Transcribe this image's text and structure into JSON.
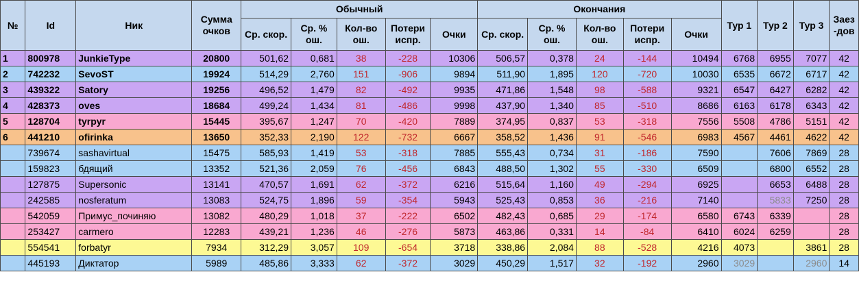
{
  "header": {
    "num": "№",
    "id": "Id",
    "nick": "Ник",
    "sum": "Сумма очков",
    "group_normal": "Обычный",
    "group_endings": "Окончания",
    "speed": "Ср. скор.",
    "err_pct": "Ср. % ош.",
    "err_count": "Кол-во ош.",
    "fix_loss": "Потери испр.",
    "points": "Очки",
    "tour1": "Тур 1",
    "tour2": "Тур 2",
    "tour3": "Тур 3",
    "races": "Заез-дов"
  },
  "colors": {
    "header_bg": "#c5d8ee",
    "purple": "#c9a6f3",
    "blue": "#a9d2f5",
    "pink": "#f9a8d0",
    "orange": "#f8c28c",
    "yellow": "#fdf994",
    "red_text": "#c0272d",
    "grey_text": "#8c8c8c"
  },
  "rows": [
    {
      "num": "1",
      "id": "800978",
      "nick": "JunkieType",
      "sum": "20800",
      "n_speed": "501,62",
      "n_errpct": "0,681",
      "n_errcnt": "38",
      "n_loss": "-228",
      "n_pts": "10306",
      "e_speed": "506,57",
      "e_errpct": "0,378",
      "e_errcnt": "24",
      "e_loss": "-144",
      "e_pts": "10494",
      "t1": "6768",
      "t2": "6955",
      "t3": "7077",
      "races": "42",
      "color": "purple",
      "bold": true
    },
    {
      "num": "2",
      "id": "742232",
      "nick": "SevoST",
      "sum": "19924",
      "n_speed": "514,29",
      "n_errpct": "2,760",
      "n_errcnt": "151",
      "n_loss": "-906",
      "n_pts": "9894",
      "e_speed": "511,90",
      "e_errpct": "1,895",
      "e_errcnt": "120",
      "e_loss": "-720",
      "e_pts": "10030",
      "t1": "6535",
      "t2": "6672",
      "t3": "6717",
      "races": "42",
      "color": "blue",
      "bold": true
    },
    {
      "num": "3",
      "id": "439322",
      "nick": "Satory",
      "sum": "19256",
      "n_speed": "496,52",
      "n_errpct": "1,479",
      "n_errcnt": "82",
      "n_loss": "-492",
      "n_pts": "9935",
      "e_speed": "471,86",
      "e_errpct": "1,548",
      "e_errcnt": "98",
      "e_loss": "-588",
      "e_pts": "9321",
      "t1": "6547",
      "t2": "6427",
      "t3": "6282",
      "races": "42",
      "color": "purple",
      "bold": true
    },
    {
      "num": "4",
      "id": "428373",
      "nick": "oves",
      "sum": "18684",
      "n_speed": "499,24",
      "n_errpct": "1,434",
      "n_errcnt": "81",
      "n_loss": "-486",
      "n_pts": "9998",
      "e_speed": "437,90",
      "e_errpct": "1,340",
      "e_errcnt": "85",
      "e_loss": "-510",
      "e_pts": "8686",
      "t1": "6163",
      "t2": "6178",
      "t3": "6343",
      "races": "42",
      "color": "purple",
      "bold": true
    },
    {
      "num": "5",
      "id": "128704",
      "nick": "tyrpyr",
      "sum": "15445",
      "n_speed": "395,67",
      "n_errpct": "1,247",
      "n_errcnt": "70",
      "n_loss": "-420",
      "n_pts": "7889",
      "e_speed": "374,95",
      "e_errpct": "0,837",
      "e_errcnt": "53",
      "e_loss": "-318",
      "e_pts": "7556",
      "t1": "5508",
      "t2": "4786",
      "t3": "5151",
      "races": "42",
      "color": "pink",
      "bold": true
    },
    {
      "num": "6",
      "id": "441210",
      "nick": "ofirinka",
      "sum": "13650",
      "n_speed": "352,33",
      "n_errpct": "2,190",
      "n_errcnt": "122",
      "n_loss": "-732",
      "n_pts": "6667",
      "e_speed": "358,52",
      "e_errpct": "1,436",
      "e_errcnt": "91",
      "e_loss": "-546",
      "e_pts": "6983",
      "t1": "4567",
      "t2": "4461",
      "t3": "4622",
      "races": "42",
      "color": "orange",
      "bold": true
    },
    {
      "num": "",
      "id": "739674",
      "nick": "sashavirtual",
      "sum": "15475",
      "n_speed": "585,93",
      "n_errpct": "1,419",
      "n_errcnt": "53",
      "n_loss": "-318",
      "n_pts": "7885",
      "e_speed": "555,43",
      "e_errpct": "0,734",
      "e_errcnt": "31",
      "e_loss": "-186",
      "e_pts": "7590",
      "t1": "",
      "t2": "7606",
      "t3": "7869",
      "races": "28",
      "color": "blue",
      "bold": false
    },
    {
      "num": "",
      "id": "159823",
      "nick": "бдящий",
      "sum": "13352",
      "n_speed": "521,36",
      "n_errpct": "2,059",
      "n_errcnt": "76",
      "n_loss": "-456",
      "n_pts": "6843",
      "e_speed": "488,50",
      "e_errpct": "1,302",
      "e_errcnt": "55",
      "e_loss": "-330",
      "e_pts": "6509",
      "t1": "",
      "t2": "6800",
      "t3": "6552",
      "races": "28",
      "color": "blue",
      "bold": false
    },
    {
      "num": "",
      "id": "127875",
      "nick": "Supersonic",
      "sum": "13141",
      "n_speed": "470,57",
      "n_errpct": "1,691",
      "n_errcnt": "62",
      "n_loss": "-372",
      "n_pts": "6216",
      "e_speed": "515,64",
      "e_errpct": "1,160",
      "e_errcnt": "49",
      "e_loss": "-294",
      "e_pts": "6925",
      "t1": "",
      "t2": "6653",
      "t3": "6488",
      "races": "28",
      "color": "purple",
      "bold": false
    },
    {
      "num": "",
      "id": "242585",
      "nick": "nosferatum",
      "sum": "13083",
      "n_speed": "524,75",
      "n_errpct": "1,896",
      "n_errcnt": "59",
      "n_loss": "-354",
      "n_pts": "5943",
      "e_speed": "525,43",
      "e_errpct": "0,853",
      "e_errcnt": "36",
      "e_loss": "-216",
      "e_pts": "7140",
      "t1": "",
      "t2": "5833",
      "t3": "7250",
      "races": "28",
      "color": "purple",
      "bold": false,
      "t2_grey": true
    },
    {
      "num": "",
      "id": "542059",
      "nick": "Примус_починяю",
      "sum": "13082",
      "n_speed": "480,29",
      "n_errpct": "1,018",
      "n_errcnt": "37",
      "n_loss": "-222",
      "n_pts": "6502",
      "e_speed": "482,43",
      "e_errpct": "0,685",
      "e_errcnt": "29",
      "e_loss": "-174",
      "e_pts": "6580",
      "t1": "6743",
      "t2": "6339",
      "t3": "",
      "races": "28",
      "color": "pink",
      "bold": false
    },
    {
      "num": "",
      "id": "253427",
      "nick": "carmero",
      "sum": "12283",
      "n_speed": "439,21",
      "n_errpct": "1,236",
      "n_errcnt": "46",
      "n_loss": "-276",
      "n_pts": "5873",
      "e_speed": "463,86",
      "e_errpct": "0,331",
      "e_errcnt": "14",
      "e_loss": "-84",
      "e_pts": "6410",
      "t1": "6024",
      "t2": "6259",
      "t3": "",
      "races": "28",
      "color": "pink",
      "bold": false
    },
    {
      "num": "",
      "id": "554541",
      "nick": "forbatyr",
      "sum": "7934",
      "n_speed": "312,29",
      "n_errpct": "3,057",
      "n_errcnt": "109",
      "n_loss": "-654",
      "n_pts": "3718",
      "e_speed": "338,86",
      "e_errpct": "2,084",
      "e_errcnt": "88",
      "e_loss": "-528",
      "e_pts": "4216",
      "t1": "4073",
      "t2": "",
      "t3": "3861",
      "races": "28",
      "color": "yellow",
      "bold": false
    },
    {
      "num": "",
      "id": "445193",
      "nick": "Диктатор",
      "sum": "5989",
      "n_speed": "485,86",
      "n_errpct": "3,333",
      "n_errcnt": "62",
      "n_loss": "-372",
      "n_pts": "3029",
      "e_speed": "450,29",
      "e_errpct": "1,517",
      "e_errcnt": "32",
      "e_loss": "-192",
      "e_pts": "2960",
      "t1": "3029",
      "t2": "",
      "t3": "2960",
      "races": "14",
      "color": "blue",
      "bold": false,
      "t1_grey": true,
      "t3_grey": true
    }
  ]
}
